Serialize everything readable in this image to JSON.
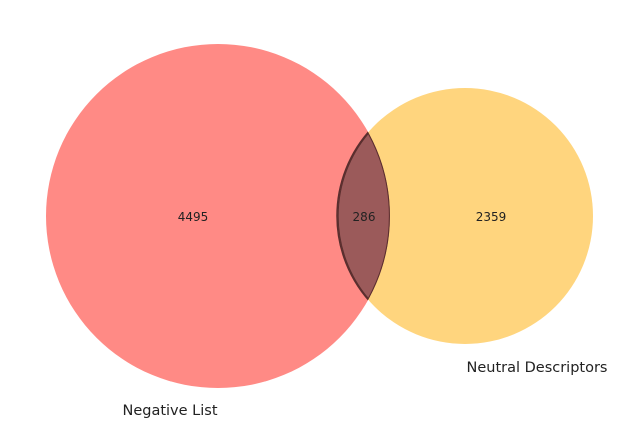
{
  "diagram": {
    "type": "venn2",
    "sets": [
      {
        "id": "left",
        "label": "Negative List",
        "only_count": "4495",
        "color": "#ff6b6b"
      },
      {
        "id": "right",
        "label": "Neutral Descriptors",
        "only_count": "2359",
        "color": "#ffc94a"
      }
    ],
    "intersection": {
      "count": "286",
      "color": "#9b5a5a",
      "border_color": "#5a2e2e"
    }
  }
}
